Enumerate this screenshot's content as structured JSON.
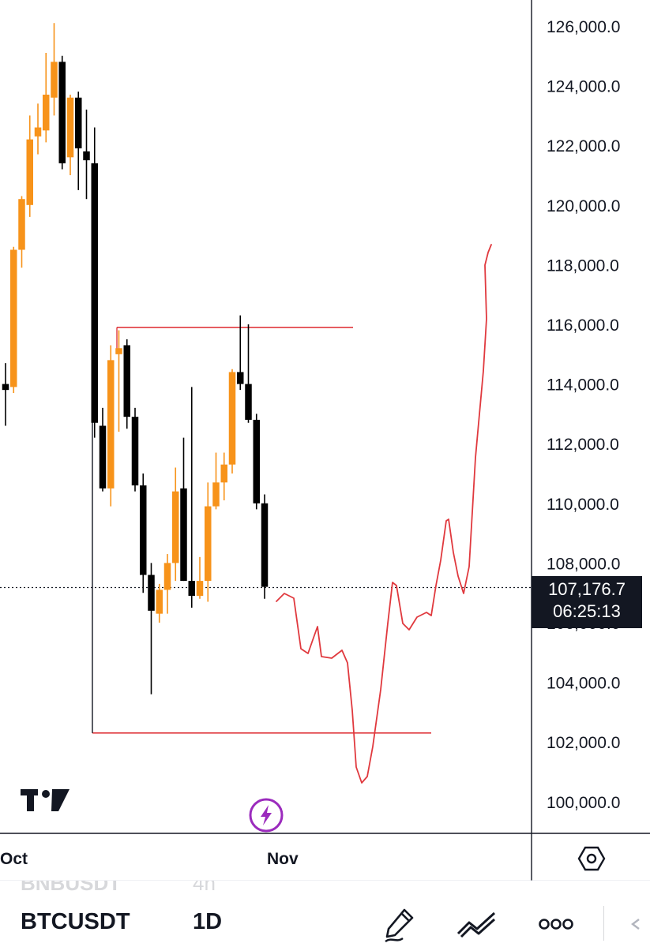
{
  "chart_data": {
    "type": "candlestick",
    "symbol": "BTCUSDT",
    "interval": "1D",
    "y_axis": {
      "ticks": [
        "126,000.0",
        "124,000.0",
        "122,000.0",
        "120,000.0",
        "118,000.0",
        "116,000.0",
        "114,000.0",
        "112,000.0",
        "110,000.0",
        "108,000.0",
        "104,000.0",
        "102,000.0",
        "100,000.0"
      ],
      "tick_values": [
        126000,
        124000,
        122000,
        120000,
        118000,
        116000,
        114000,
        112000,
        110000,
        108000,
        104000,
        102000,
        100000
      ],
      "range": [
        99000,
        126600
      ]
    },
    "x_axis": {
      "ticks": [
        "Oct",
        "Nov"
      ]
    },
    "last_price": {
      "value": "107,176.7",
      "countdown": "06:25:13",
      "level": 107177
    },
    "candles": [
      {
        "o": 114000,
        "h": 114700,
        "l": 112600,
        "c": 113800
      },
      {
        "o": 113900,
        "h": 118600,
        "l": 113700,
        "c": 118500
      },
      {
        "o": 118500,
        "h": 120300,
        "l": 117900,
        "c": 120200
      },
      {
        "o": 120000,
        "h": 123000,
        "l": 119600,
        "c": 122200
      },
      {
        "o": 122300,
        "h": 123400,
        "l": 121700,
        "c": 122600
      },
      {
        "o": 122500,
        "h": 125100,
        "l": 122100,
        "c": 123700
      },
      {
        "o": 123600,
        "h": 126100,
        "l": 123000,
        "c": 124800
      },
      {
        "o": 124800,
        "h": 125000,
        "l": 121200,
        "c": 121400
      },
      {
        "o": 121600,
        "h": 123700,
        "l": 121000,
        "c": 123600
      },
      {
        "o": 123600,
        "h": 123800,
        "l": 120500,
        "c": 121900
      },
      {
        "o": 121800,
        "h": 123200,
        "l": 120200,
        "c": 121500
      },
      {
        "o": 121400,
        "h": 122600,
        "l": 112200,
        "c": 112700
      },
      {
        "o": 112600,
        "h": 113200,
        "l": 110400,
        "c": 110500
      },
      {
        "o": 110500,
        "h": 115300,
        "l": 109900,
        "c": 114800
      },
      {
        "o": 115000,
        "h": 115800,
        "l": 112400,
        "c": 115200
      },
      {
        "o": 115300,
        "h": 115500,
        "l": 112500,
        "c": 112900
      },
      {
        "o": 112900,
        "h": 113200,
        "l": 110400,
        "c": 110600
      },
      {
        "o": 110600,
        "h": 111000,
        "l": 107000,
        "c": 107600
      },
      {
        "o": 107600,
        "h": 108000,
        "l": 103600,
        "c": 106400
      },
      {
        "o": 106300,
        "h": 107300,
        "l": 106000,
        "c": 107100
      },
      {
        "o": 107100,
        "h": 108300,
        "l": 106300,
        "c": 108000
      },
      {
        "o": 108000,
        "h": 111200,
        "l": 107400,
        "c": 110400
      },
      {
        "o": 110500,
        "h": 112200,
        "l": 107400,
        "c": 107400
      },
      {
        "o": 107400,
        "h": 113900,
        "l": 106500,
        "c": 106900
      },
      {
        "o": 106900,
        "h": 108200,
        "l": 106800,
        "c": 107400
      },
      {
        "o": 107400,
        "h": 110700,
        "l": 106700,
        "c": 109900
      },
      {
        "o": 109900,
        "h": 111700,
        "l": 109800,
        "c": 110700
      },
      {
        "o": 110700,
        "h": 111700,
        "l": 110100,
        "c": 111300
      },
      {
        "o": 111300,
        "h": 114500,
        "l": 111000,
        "c": 114400
      },
      {
        "o": 114400,
        "h": 116300,
        "l": 113800,
        "c": 114000
      },
      {
        "o": 114000,
        "h": 116000,
        "l": 112700,
        "c": 112800
      },
      {
        "o": 112800,
        "h": 113000,
        "l": 109800,
        "c": 110000
      },
      {
        "o": 110000,
        "h": 110300,
        "l": 106800,
        "c": 107200
      }
    ],
    "horizontal_lines": [
      {
        "price": 115900,
        "color": "#e0393e"
      },
      {
        "price": 102300,
        "color": "#e0393e"
      }
    ],
    "projection_path": [
      [
        350,
        762
      ],
      [
        360,
        752
      ],
      [
        372,
        758
      ],
      [
        381,
        822
      ],
      [
        390,
        828
      ],
      [
        397,
        808
      ],
      [
        402,
        794
      ],
      [
        407,
        832
      ],
      [
        420,
        834
      ],
      [
        433,
        824
      ],
      [
        440,
        840
      ],
      [
        446,
        900
      ],
      [
        451,
        972
      ],
      [
        458,
        992
      ],
      [
        465,
        984
      ],
      [
        472,
        946
      ],
      [
        482,
        874
      ],
      [
        491,
        790
      ],
      [
        497,
        738
      ],
      [
        502,
        742
      ],
      [
        510,
        790
      ],
      [
        518,
        798
      ],
      [
        528,
        782
      ],
      [
        540,
        776
      ],
      [
        546,
        780
      ],
      [
        552,
        742
      ],
      [
        558,
        710
      ],
      [
        565,
        660
      ],
      [
        568,
        658
      ],
      [
        574,
        700
      ],
      [
        580,
        730
      ],
      [
        587,
        752
      ],
      [
        594,
        718
      ],
      [
        602,
        580
      ],
      [
        612,
        470
      ],
      [
        616,
        404
      ],
      [
        614,
        336
      ],
      [
        618,
        320
      ],
      [
        622,
        310
      ]
    ],
    "projection_color": "#e0393e"
  },
  "ui": {
    "symbol": "BTCUSDT",
    "interval": "1D",
    "ghost_symbol": "BNBUSDT",
    "ghost_interval": "4h",
    "colors": {
      "up": "#f7931a",
      "down": "#000000",
      "accent": "#9b2bbd",
      "lines": "#e0393e"
    },
    "icons": [
      "tradingview-logo",
      "lightning-icon",
      "settings-hexagon-icon",
      "pencil-draw-icon",
      "trendline-tool-icon",
      "more-dots-icon",
      "back-arrow-icon"
    ]
  }
}
